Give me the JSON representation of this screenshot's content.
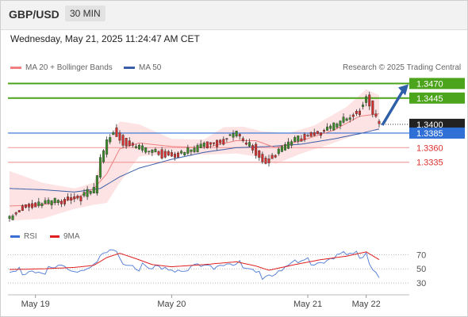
{
  "header": {
    "symbol": "GBP/USD",
    "timeframe": "30 MIN"
  },
  "datetime": "Wednesday, May 21, 2025 11:24:47 AM CET",
  "legend": {
    "ma20_label": "MA 20 + Bollinger Bands",
    "ma50_label": "MA 50",
    "credit": "Research © 2025 Trading Central",
    "rsi_label": "RSI",
    "rsi_ma_label": "9MA"
  },
  "colors": {
    "resistance": "#4ca31c",
    "support": "#e03030",
    "pivot": "#2f6fd6",
    "price": "#222222",
    "ma20": "#f08080",
    "ma50": "#3b5ea8",
    "bands_fill": "#fde3e3",
    "candle_up": "#3a8a2a",
    "candle_down": "#d03030",
    "arrow": "#2f5fa8"
  },
  "chart_data": {
    "type": "candlestick",
    "price_axis": {
      "min": 1.323,
      "max": 1.348
    },
    "levels": [
      {
        "label": "1.3470",
        "value": 1.347,
        "kind": "resistance"
      },
      {
        "label": "1.3445",
        "value": 1.3445,
        "kind": "resistance"
      },
      {
        "label": "1.3400",
        "value": 1.34,
        "kind": "last-price"
      },
      {
        "label": "1.3385",
        "value": 1.3385,
        "kind": "pivot"
      },
      {
        "label": "1.3360",
        "value": 1.336,
        "kind": "support"
      },
      {
        "label": "1.3335",
        "value": 1.3335,
        "kind": "support"
      }
    ],
    "x_ticks": [
      "May 19",
      "May 20",
      "May 21",
      "May 22"
    ],
    "x_tick_index": [
      8,
      50,
      92,
      110
    ],
    "n_points": 115,
    "close_anchors": [
      [
        0,
        1.3245
      ],
      [
        4,
        1.3262
      ],
      [
        10,
        1.3268
      ],
      [
        16,
        1.3272
      ],
      [
        22,
        1.328
      ],
      [
        26,
        1.329
      ],
      [
        28,
        1.334
      ],
      [
        30,
        1.3375
      ],
      [
        32,
        1.3395
      ],
      [
        34,
        1.338
      ],
      [
        36,
        1.337
      ],
      [
        40,
        1.3362
      ],
      [
        44,
        1.3356
      ],
      [
        50,
        1.335
      ],
      [
        56,
        1.3358
      ],
      [
        60,
        1.3368
      ],
      [
        64,
        1.3372
      ],
      [
        68,
        1.3382
      ],
      [
        70,
        1.3388
      ],
      [
        72,
        1.3372
      ],
      [
        75,
        1.3365
      ],
      [
        78,
        1.334
      ],
      [
        80,
        1.3345
      ],
      [
        84,
        1.336
      ],
      [
        88,
        1.3378
      ],
      [
        92,
        1.3385
      ],
      [
        96,
        1.339
      ],
      [
        100,
        1.3402
      ],
      [
        104,
        1.3412
      ],
      [
        108,
        1.3428
      ],
      [
        110,
        1.3452
      ],
      [
        112,
        1.3425
      ],
      [
        114,
        1.34
      ]
    ],
    "ma20_anchors": [
      [
        0,
        1.326
      ],
      [
        10,
        1.3262
      ],
      [
        20,
        1.3272
      ],
      [
        26,
        1.329
      ],
      [
        30,
        1.3315
      ],
      [
        34,
        1.3358
      ],
      [
        40,
        1.3368
      ],
      [
        50,
        1.3362
      ],
      [
        60,
        1.336
      ],
      [
        70,
        1.3372
      ],
      [
        76,
        1.3372
      ],
      [
        82,
        1.336
      ],
      [
        90,
        1.3372
      ],
      [
        100,
        1.339
      ],
      [
        108,
        1.3414
      ],
      [
        114,
        1.3418
      ]
    ],
    "ma50_anchors": [
      [
        0,
        1.329
      ],
      [
        10,
        1.3288
      ],
      [
        20,
        1.3284
      ],
      [
        28,
        1.329
      ],
      [
        34,
        1.331
      ],
      [
        40,
        1.3325
      ],
      [
        50,
        1.334
      ],
      [
        60,
        1.3352
      ],
      [
        70,
        1.336
      ],
      [
        80,
        1.3362
      ],
      [
        90,
        1.3366
      ],
      [
        100,
        1.3375
      ],
      [
        108,
        1.3384
      ],
      [
        114,
        1.3392
      ]
    ],
    "band_upper_anchors": [
      [
        0,
        1.332
      ],
      [
        10,
        1.33
      ],
      [
        20,
        1.329
      ],
      [
        26,
        1.33
      ],
      [
        30,
        1.337
      ],
      [
        34,
        1.3405
      ],
      [
        40,
        1.34
      ],
      [
        50,
        1.3375
      ],
      [
        60,
        1.3374
      ],
      [
        66,
        1.3395
      ],
      [
        72,
        1.3396
      ],
      [
        78,
        1.3388
      ],
      [
        86,
        1.3385
      ],
      [
        94,
        1.3398
      ],
      [
        104,
        1.343
      ],
      [
        110,
        1.346
      ],
      [
        114,
        1.345
      ]
    ],
    "band_lower_anchors": [
      [
        0,
        1.3235
      ],
      [
        10,
        1.3238
      ],
      [
        20,
        1.3255
      ],
      [
        26,
        1.3262
      ],
      [
        30,
        1.3265
      ],
      [
        34,
        1.33
      ],
      [
        40,
        1.3345
      ],
      [
        50,
        1.335
      ],
      [
        60,
        1.3348
      ],
      [
        70,
        1.335
      ],
      [
        76,
        1.3345
      ],
      [
        82,
        1.3332
      ],
      [
        90,
        1.335
      ],
      [
        100,
        1.3368
      ],
      [
        108,
        1.3385
      ],
      [
        114,
        1.339
      ]
    ],
    "rsi_axis": {
      "min": 20,
      "max": 85,
      "ticks": [
        30,
        50,
        70
      ]
    },
    "rsi_anchors": [
      [
        0,
        48
      ],
      [
        6,
        52
      ],
      [
        10,
        48
      ],
      [
        16,
        55
      ],
      [
        20,
        50
      ],
      [
        26,
        58
      ],
      [
        28,
        66
      ],
      [
        30,
        72
      ],
      [
        32,
        76
      ],
      [
        34,
        71
      ],
      [
        36,
        60
      ],
      [
        40,
        57
      ],
      [
        44,
        52
      ],
      [
        50,
        53
      ],
      [
        56,
        55
      ],
      [
        62,
        58
      ],
      [
        68,
        61
      ],
      [
        70,
        63
      ],
      [
        72,
        55
      ],
      [
        76,
        47
      ],
      [
        78,
        40
      ],
      [
        80,
        46
      ],
      [
        84,
        56
      ],
      [
        88,
        60
      ],
      [
        92,
        64
      ],
      [
        96,
        66
      ],
      [
        100,
        70
      ],
      [
        104,
        72
      ],
      [
        108,
        74
      ],
      [
        110,
        78
      ],
      [
        112,
        55
      ],
      [
        114,
        47
      ]
    ],
    "rsi_ma_anchors": [
      [
        0,
        49
      ],
      [
        10,
        50
      ],
      [
        20,
        52
      ],
      [
        26,
        55
      ],
      [
        30,
        66
      ],
      [
        34,
        72
      ],
      [
        38,
        66
      ],
      [
        44,
        56
      ],
      [
        50,
        53
      ],
      [
        60,
        56
      ],
      [
        70,
        60
      ],
      [
        76,
        54
      ],
      [
        80,
        48
      ],
      [
        88,
        56
      ],
      [
        96,
        63
      ],
      [
        104,
        68
      ],
      [
        110,
        74
      ],
      [
        114,
        63
      ]
    ]
  }
}
